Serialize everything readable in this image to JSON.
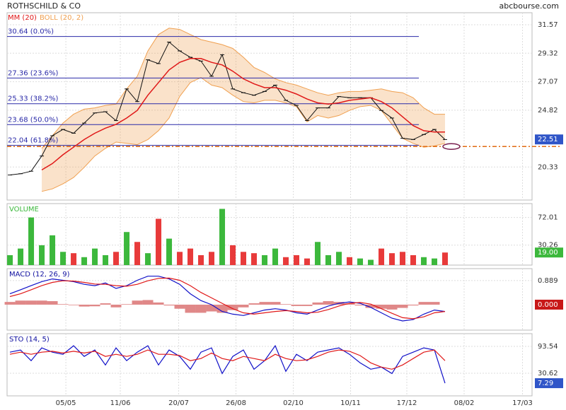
{
  "chart_data": [
    {
      "type": "price",
      "title": "ROTHSCHILD & CO",
      "source": "abcbourse.com",
      "ylim": [
        17.72,
        32.52
      ],
      "yticks": [
        31.57,
        29.32,
        27.07,
        24.82,
        20.33
      ],
      "grid": true,
      "last": 22.51,
      "last_color": "#2f55c8",
      "price": {
        "color": "#111111",
        "values": [
          19.7,
          19.8,
          20.0,
          21.2,
          22.8,
          23.3,
          23.0,
          23.8,
          24.6,
          24.7,
          24.0,
          26.5,
          25.5,
          28.8,
          28.5,
          30.2,
          29.5,
          29.0,
          28.7,
          27.5,
          29.2,
          26.5,
          26.2,
          26.0,
          26.3,
          26.8,
          25.6,
          25.2,
          24.0,
          25.0,
          25.0,
          25.9,
          25.8,
          25.8,
          25.8,
          24.8,
          24.2,
          22.6,
          22.5,
          22.9,
          23.3,
          22.5
        ]
      },
      "series": [
        {
          "name": "MM (20)",
          "color": "#e01818",
          "values": [
            null,
            null,
            null,
            20.1,
            20.6,
            21.3,
            21.9,
            22.5,
            23.0,
            23.4,
            23.7,
            24.2,
            24.8,
            26.0,
            27.0,
            28.0,
            28.6,
            28.9,
            28.9,
            28.6,
            28.4,
            27.9,
            27.3,
            26.9,
            26.6,
            26.6,
            26.4,
            26.1,
            25.7,
            25.4,
            25.3,
            25.4,
            25.6,
            25.7,
            25.8,
            25.5,
            25.0,
            24.3,
            23.6,
            23.2,
            23.1,
            23.1
          ]
        },
        {
          "name": "BOLL (20, 2)",
          "color": "#f0a050",
          "upper": [
            null,
            null,
            null,
            21.8,
            22.8,
            23.8,
            24.5,
            24.9,
            25.0,
            25.2,
            25.3,
            26.5,
            27.5,
            29.5,
            30.8,
            31.3,
            31.2,
            30.8,
            30.4,
            30.2,
            30.0,
            29.7,
            29.0,
            28.2,
            27.8,
            27.3,
            27.0,
            26.8,
            26.5,
            26.2,
            26.0,
            26.2,
            26.3,
            26.3,
            26.4,
            26.5,
            26.3,
            26.2,
            25.8,
            25.0,
            24.5,
            24.5
          ],
          "lower": [
            null,
            null,
            null,
            18.4,
            18.6,
            19.0,
            19.5,
            20.3,
            21.2,
            21.8,
            22.3,
            22.2,
            22.1,
            22.5,
            23.2,
            24.2,
            25.9,
            27.0,
            27.4,
            26.8,
            26.6,
            26.0,
            25.5,
            25.4,
            25.6,
            25.6,
            25.4,
            25.1,
            23.9,
            24.4,
            24.2,
            24.4,
            24.8,
            25.1,
            25.2,
            24.8,
            23.7,
            22.6,
            22.2,
            21.9,
            22.0,
            22.2
          ]
        }
      ],
      "levels_color": "#2a2aa8",
      "levels": [
        {
          "value": 30.64,
          "label": "30.64 (0.0%)"
        },
        {
          "value": 27.36,
          "label": "27.36 (23.6%)"
        },
        {
          "value": 25.33,
          "label": "25.33 (38.2%)"
        },
        {
          "value": 23.68,
          "label": "23.68 (50.0%)"
        },
        {
          "value": 22.04,
          "label": "22.04 (61.8%)"
        }
      ],
      "alert_level": 21.95,
      "alert_color": "#e06a10"
    },
    {
      "type": "volume",
      "title": "VOLUME",
      "ylim": [
        0,
        93
      ],
      "yticks": [
        72.01,
        30.26
      ],
      "grid": true,
      "up_color": "#3cb83c",
      "down_color": "#e83a3a",
      "last": {
        "value": 19,
        "label": "19.00"
      },
      "last_color": "#3cb83c",
      "values": [
        15,
        25,
        72,
        30,
        45,
        20,
        18,
        12,
        25,
        15,
        20,
        50,
        35,
        18,
        70,
        40,
        20,
        25,
        15,
        20,
        85,
        30,
        20,
        18,
        15,
        25,
        12,
        15,
        10,
        35,
        15,
        20,
        12,
        10,
        8,
        25,
        18,
        20,
        15,
        12,
        10,
        19
      ]
    },
    {
      "type": "macd",
      "title": "MACD (12, 26, 9)",
      "ylim": [
        -0.94,
        1.33
      ],
      "yticks": [
        0.889
      ],
      "grid": true,
      "last": {
        "value": 0,
        "label": "0.000"
      },
      "last_color": "#c81818",
      "histogram": {
        "color": "#e08888",
        "values": [
          0.1,
          0.15,
          0.15,
          0.15,
          0.13,
          0.02,
          -0.02,
          -0.07,
          -0.06,
          0.05,
          -0.1,
          0.02,
          0.15,
          0.17,
          0.08,
          -0.03,
          -0.15,
          -0.3,
          -0.3,
          -0.25,
          -0.3,
          -0.2,
          -0.1,
          0.05,
          0.1,
          0.1,
          0.02,
          -0.05,
          -0.05,
          0.08,
          0.13,
          0.1,
          0.05,
          -0.03,
          -0.12,
          -0.15,
          -0.18,
          -0.12,
          -0.03,
          0.1,
          0.1,
          0.0
        ]
      },
      "series": [
        {
          "color": "#1010c8",
          "values": [
            0.4,
            0.55,
            0.7,
            0.85,
            0.95,
            0.9,
            0.85,
            0.75,
            0.7,
            0.8,
            0.6,
            0.7,
            0.9,
            1.05,
            1.05,
            0.95,
            0.75,
            0.4,
            0.15,
            0.0,
            -0.25,
            -0.35,
            -0.4,
            -0.3,
            -0.2,
            -0.15,
            -0.2,
            -0.3,
            -0.35,
            -0.2,
            -0.05,
            0.05,
            0.1,
            0.05,
            -0.1,
            -0.3,
            -0.5,
            -0.6,
            -0.55,
            -0.35,
            -0.2,
            -0.25
          ]
        },
        {
          "color": "#e01818",
          "values": [
            0.3,
            0.4,
            0.55,
            0.7,
            0.82,
            0.88,
            0.87,
            0.82,
            0.76,
            0.75,
            0.7,
            0.68,
            0.75,
            0.88,
            0.97,
            0.98,
            0.9,
            0.7,
            0.45,
            0.25,
            0.05,
            -0.15,
            -0.3,
            -0.35,
            -0.3,
            -0.25,
            -0.22,
            -0.25,
            -0.3,
            -0.28,
            -0.18,
            -0.05,
            0.05,
            0.08,
            0.02,
            -0.15,
            -0.32,
            -0.48,
            -0.52,
            -0.45,
            -0.3,
            -0.25
          ]
        }
      ]
    },
    {
      "type": "sto",
      "title": "STO (14, 5)",
      "ylim": [
        -22.4,
        123.3
      ],
      "yticks": [
        93.54,
        30.62
      ],
      "grid": true,
      "last": 7.29,
      "last_color": "#2f55c8",
      "series": [
        {
          "color": "#1010c8",
          "values": [
            80,
            85,
            60,
            90,
            80,
            75,
            95,
            70,
            85,
            50,
            90,
            60,
            80,
            95,
            50,
            85,
            70,
            40,
            80,
            90,
            30,
            70,
            85,
            40,
            60,
            95,
            35,
            75,
            60,
            80,
            85,
            90,
            75,
            55,
            40,
            45,
            30,
            70,
            80,
            90,
            85,
            7.29
          ]
        },
        {
          "color": "#e01818",
          "values": [
            75,
            80,
            75,
            80,
            82,
            78,
            82,
            78,
            82,
            70,
            75,
            70,
            75,
            85,
            75,
            75,
            72,
            60,
            65,
            78,
            65,
            60,
            70,
            65,
            60,
            75,
            65,
            60,
            62,
            70,
            80,
            85,
            82,
            72,
            55,
            45,
            40,
            50,
            65,
            80,
            85,
            60
          ]
        }
      ],
      "xlim": [
        -0.27,
        49.2
      ],
      "xticks": [
        {
          "value": 5.27,
          "label": "05/05"
        },
        {
          "value": 10.4,
          "label": "11/06"
        },
        {
          "value": 15.9,
          "label": "20/07"
        },
        {
          "value": 21.3,
          "label": "26/08"
        },
        {
          "value": 26.7,
          "label": "02/10"
        },
        {
          "value": 32.1,
          "label": "10/11"
        },
        {
          "value": 37.4,
          "label": "17/12"
        },
        {
          "value": 42.8,
          "label": "08/02"
        },
        {
          "value": 48.3,
          "label": "17/03"
        }
      ]
    }
  ]
}
